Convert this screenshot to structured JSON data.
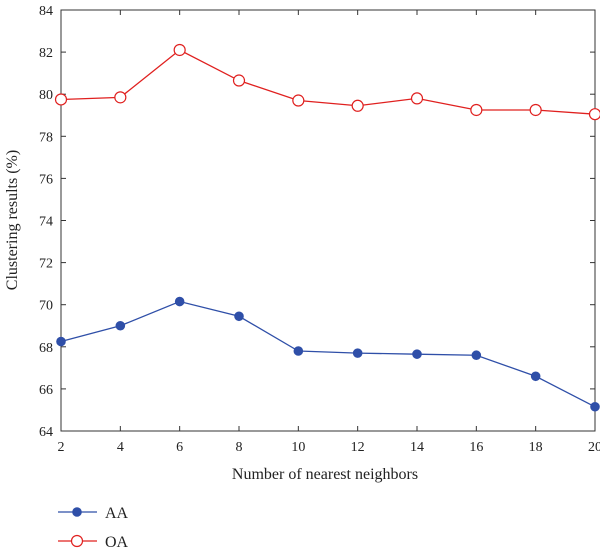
{
  "chart_data": {
    "type": "line",
    "xlabel": "Number of nearest neighbors",
    "ylabel": "Clustering results (%)",
    "xlim": [
      2,
      20
    ],
    "ylim": [
      64,
      84
    ],
    "xticks": [
      2,
      4,
      6,
      8,
      10,
      12,
      14,
      16,
      18,
      20
    ],
    "yticks": [
      64,
      66,
      68,
      70,
      72,
      74,
      76,
      78,
      80,
      82,
      84
    ],
    "grid": false,
    "legend_position": "bottom-left",
    "x": [
      2,
      4,
      6,
      8,
      10,
      12,
      14,
      16,
      18,
      20
    ],
    "series": [
      {
        "name": "AA",
        "color": "#2f4fa8",
        "marker": "filled-circle",
        "values": [
          68.25,
          69.0,
          70.15,
          69.45,
          67.8,
          67.7,
          67.65,
          67.6,
          66.6,
          65.15
        ]
      },
      {
        "name": "OA",
        "color": "#e0201f",
        "marker": "open-circle",
        "values": [
          79.75,
          79.85,
          82.1,
          80.65,
          79.7,
          79.45,
          79.8,
          79.25,
          79.25,
          79.05
        ]
      }
    ]
  }
}
